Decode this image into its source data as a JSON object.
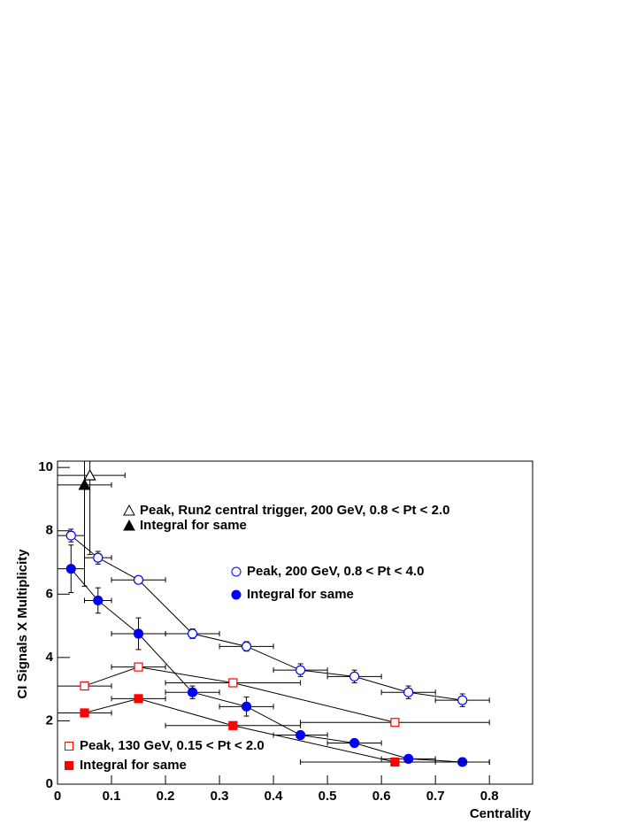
{
  "chart_data": {
    "type": "scatter",
    "xlabel": "Centrality",
    "ylabel": "CI Signals X Multiplicity",
    "xlim": [
      0,
      0.88
    ],
    "ylim": [
      0,
      10.2
    ],
    "xticks": [
      0,
      0.1,
      0.2,
      0.3,
      0.4,
      0.5,
      0.6,
      0.7,
      0.8
    ],
    "yticks": [
      0,
      2,
      4,
      6,
      8,
      10
    ],
    "series": [
      {
        "name": "Peak, Run2 central trigger, 200 GeV, 0.8 < Pt < 2.0",
        "color": "#000000",
        "marker": "triangle",
        "filled": false,
        "x": [
          0.06
        ],
        "values": [
          9.75
        ],
        "xerr_low": [
          0.06
        ],
        "xerr_high": [
          0.065
        ],
        "yerr": [
          2.5
        ]
      },
      {
        "name": "Integral for same",
        "color": "#000000",
        "marker": "triangle",
        "filled": true,
        "x": [
          0.05
        ],
        "values": [
          9.45
        ],
        "xerr_low": [
          0.05
        ],
        "xerr_high": [
          0.05
        ],
        "yerr": [
          3.2
        ]
      },
      {
        "name": "Peak, 200 GeV, 0.8 < Pt < 4.0",
        "color": "#0000ff",
        "marker": "circle",
        "filled": false,
        "x": [
          0.025,
          0.075,
          0.15,
          0.25,
          0.35,
          0.45,
          0.55,
          0.65,
          0.75
        ],
        "values": [
          7.85,
          7.15,
          6.45,
          4.75,
          4.35,
          3.6,
          3.4,
          2.9,
          2.65
        ],
        "xerr_low": [
          0.025,
          0.025,
          0.05,
          0.05,
          0.05,
          0.05,
          0.05,
          0.05,
          0.05
        ],
        "xerr_high": [
          0.025,
          0.025,
          0.05,
          0.05,
          0.05,
          0.05,
          0.05,
          0.05,
          0.05
        ],
        "yerr": [
          0.2,
          0.2,
          0.1,
          0.15,
          0.15,
          0.2,
          0.2,
          0.2,
          0.2
        ]
      },
      {
        "name": "Integral for same",
        "color": "#0000ff",
        "marker": "circle",
        "filled": true,
        "x": [
          0.025,
          0.075,
          0.15,
          0.25,
          0.35,
          0.45,
          0.55,
          0.65,
          0.75
        ],
        "values": [
          6.8,
          5.8,
          4.75,
          2.9,
          2.45,
          1.55,
          1.3,
          0.8,
          0.7
        ],
        "xerr_low": [
          0.025,
          0.025,
          0.05,
          0.05,
          0.05,
          0.05,
          0.05,
          0.05,
          0.05
        ],
        "xerr_high": [
          0.025,
          0.025,
          0.05,
          0.05,
          0.05,
          0.05,
          0.05,
          0.05,
          0.05
        ],
        "yerr": [
          0.75,
          0.4,
          0.5,
          0.2,
          0.3,
          0.1,
          0.1,
          0.05,
          0.05
        ]
      },
      {
        "name": "Peak, 130 GeV, 0.15 < Pt < 2.0",
        "color": "#ff0000",
        "marker": "square",
        "filled": false,
        "x": [
          0.05,
          0.15,
          0.325,
          0.625
        ],
        "values": [
          3.1,
          3.7,
          3.2,
          1.95
        ],
        "xerr_low": [
          0.05,
          0.05,
          0.125,
          0.175
        ],
        "xerr_high": [
          0.05,
          0.05,
          0.125,
          0.175
        ],
        "yerr": [
          0.05,
          0.05,
          0.05,
          0.05
        ]
      },
      {
        "name": "Integral for same",
        "color": "#ff0000",
        "marker": "square",
        "filled": true,
        "x": [
          0.05,
          0.15,
          0.325,
          0.625
        ],
        "values": [
          2.25,
          2.7,
          1.85,
          0.7
        ],
        "xerr_low": [
          0.05,
          0.05,
          0.125,
          0.175
        ],
        "xerr_high": [
          0.05,
          0.05,
          0.125,
          0.175
        ],
        "yerr": [
          0.05,
          0.05,
          0.05,
          0.05
        ]
      }
    ]
  }
}
